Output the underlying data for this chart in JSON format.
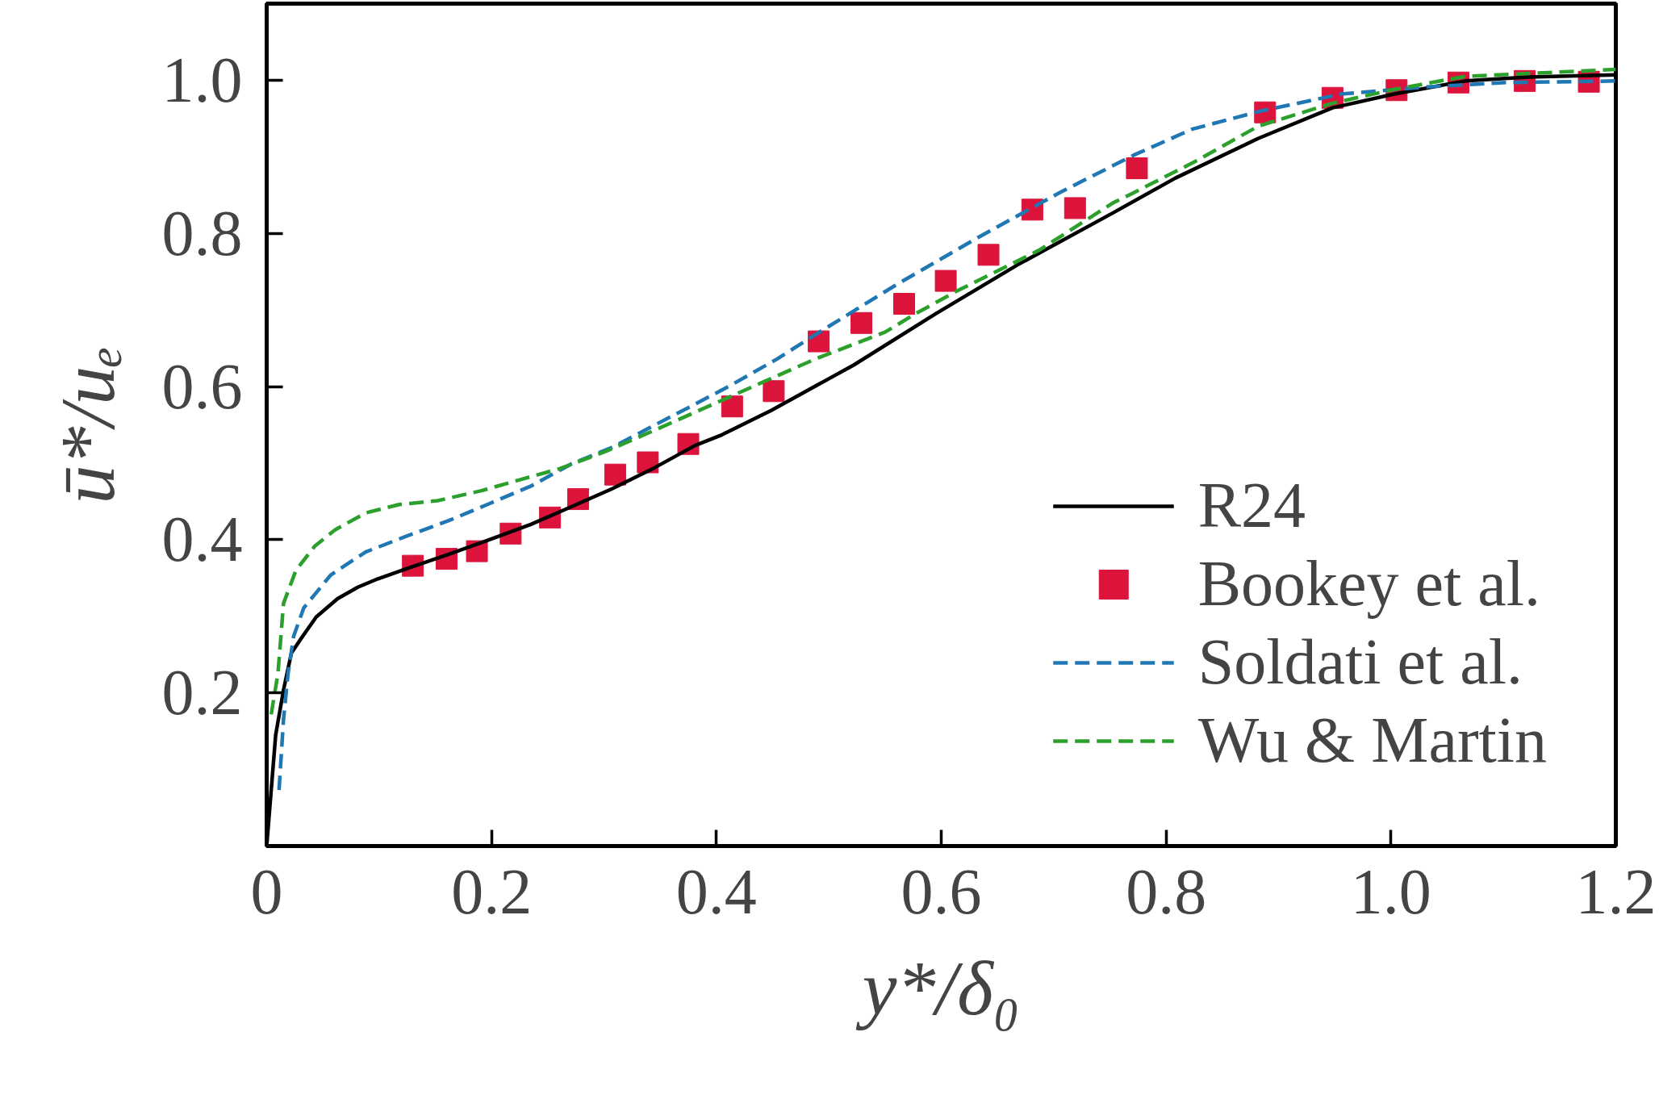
{
  "chart_data": {
    "type": "line",
    "xlabel": "y*/δ₀",
    "ylabel": "ū*/uₑ",
    "xlim": [
      0,
      1.2
    ],
    "ylim": [
      0,
      1.1
    ],
    "xticks": [
      0,
      0.2,
      0.4,
      0.6,
      0.8,
      {
        "value": 1,
        "label": "1.0"
      },
      1.2
    ],
    "yticks": [
      0.2,
      0.4,
      0.6,
      0.8,
      {
        "value": 1,
        "label": "1.0"
      }
    ],
    "legend": "bottom right",
    "series": [
      {
        "name": "R24",
        "line_style": "solid",
        "color": "#000000",
        "x": [
          0,
          0.008,
          0.015,
          0.022,
          0.032,
          0.044,
          0.063,
          0.081,
          0.099,
          0.13,
          0.162,
          0.198,
          0.235,
          0.271,
          0.308,
          0.345,
          0.381,
          0.405,
          0.449,
          0.522,
          0.595,
          0.668,
          0.753,
          0.808,
          0.882,
          0.948,
          1.003,
          1.066,
          1.122,
          1.2
        ],
        "values": [
          0,
          0.145,
          0.204,
          0.252,
          0.274,
          0.299,
          0.323,
          0.338,
          0.349,
          0.365,
          0.381,
          0.4,
          0.42,
          0.443,
          0.467,
          0.494,
          0.523,
          0.537,
          0.569,
          0.628,
          0.695,
          0.759,
          0.827,
          0.872,
          0.924,
          0.964,
          0.982,
          0.999,
          1.004,
          1.007
        ]
      },
      {
        "name": "Bookey et al.",
        "type": "scatter",
        "marker": "square",
        "color": "#dc143c",
        "x": [
          0.13,
          0.16,
          0.187,
          0.217,
          0.252,
          0.277,
          0.31,
          0.339,
          0.375,
          0.414,
          0.451,
          0.491,
          0.529,
          0.567,
          0.604,
          0.642,
          0.681,
          0.719,
          0.774,
          0.888,
          0.948,
          1.005,
          1.06,
          1.119,
          1.176
        ],
        "values": [
          0.366,
          0.375,
          0.385,
          0.408,
          0.429,
          0.453,
          0.485,
          0.501,
          0.525,
          0.574,
          0.594,
          0.659,
          0.683,
          0.708,
          0.738,
          0.772,
          0.831,
          0.833,
          0.885,
          0.958,
          0.977,
          0.987,
          0.997,
          0.999,
          0.998
        ]
      },
      {
        "name": "Soldati et al.",
        "line_style": "dashed",
        "color": "#1f77b4",
        "x": [
          0.011,
          0.015,
          0.019,
          0.024,
          0.033,
          0.057,
          0.088,
          0.125,
          0.162,
          0.198,
          0.235,
          0.271,
          0.308,
          0.339,
          0.381,
          0.412,
          0.454,
          0.485,
          0.559,
          0.632,
          0.705,
          0.771,
          0.823,
          0.882,
          0.956,
          1.029,
          1.103,
          1.2
        ],
        "values": [
          0.073,
          0.166,
          0.225,
          0.274,
          0.311,
          0.354,
          0.384,
          0.405,
          0.425,
          0.447,
          0.47,
          0.499,
          0.521,
          0.545,
          0.577,
          0.601,
          0.636,
          0.665,
          0.732,
          0.794,
          0.853,
          0.902,
          0.936,
          0.959,
          0.982,
          0.991,
          0.997,
          0.999
        ]
      },
      {
        "name": "Wu & Martin",
        "line_style": "dashed",
        "color": "#2ca02c",
        "x": [
          0.004,
          0.01,
          0.015,
          0.026,
          0.043,
          0.061,
          0.088,
          0.118,
          0.152,
          0.191,
          0.227,
          0.261,
          0.301,
          0.342,
          0.411,
          0.454,
          0.488,
          0.55,
          0.577,
          0.613,
          0.687,
          0.753,
          0.771,
          0.826,
          0.882,
          0.948,
          1.003,
          1.066,
          1.14,
          1.2
        ],
        "values": [
          0.172,
          0.225,
          0.317,
          0.36,
          0.392,
          0.413,
          0.435,
          0.446,
          0.451,
          0.464,
          0.479,
          0.493,
          0.515,
          0.541,
          0.586,
          0.614,
          0.636,
          0.671,
          0.695,
          0.724,
          0.778,
          0.84,
          0.853,
          0.894,
          0.94,
          0.97,
          0.988,
          1.005,
          1.01,
          1.014
        ]
      }
    ]
  }
}
